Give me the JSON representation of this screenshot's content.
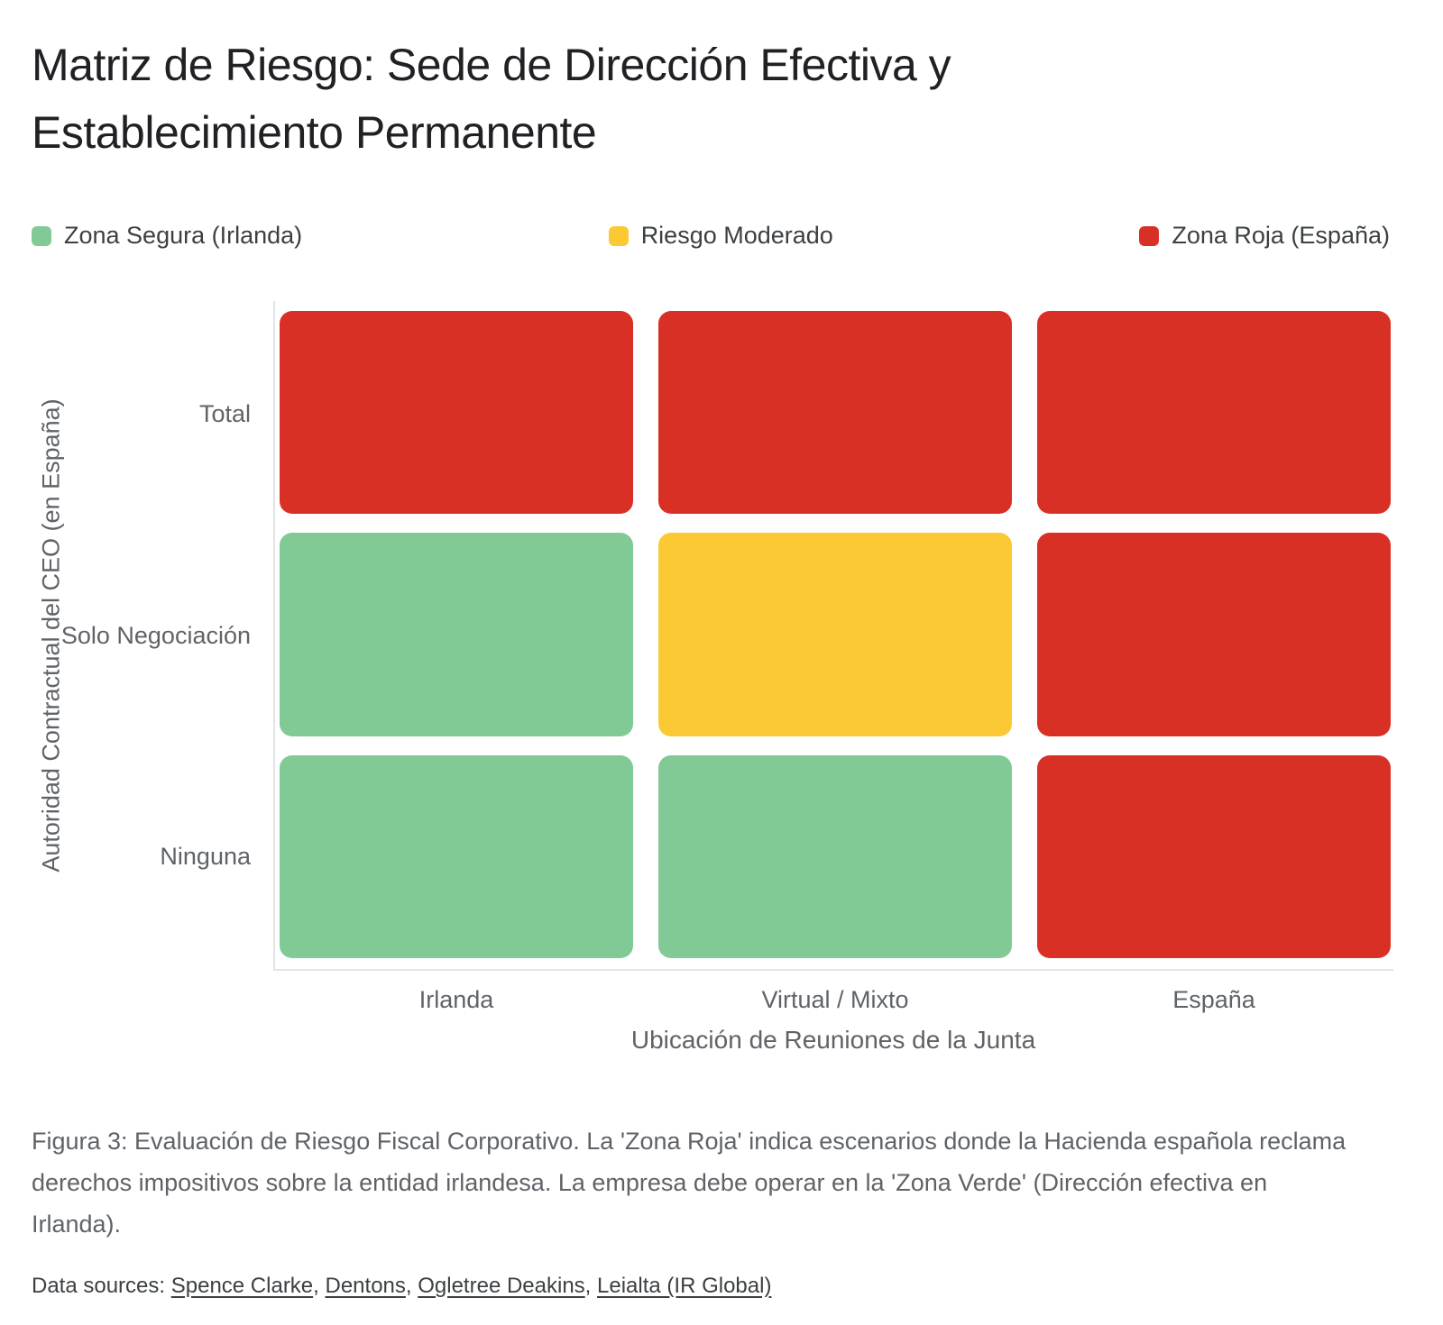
{
  "title": {
    "line1": "Matriz de Riesgo: Sede de Dirección Efectiva y",
    "line2": "Establecimiento Permanente"
  },
  "legend": [
    {
      "label": "Zona Segura (Irlanda)",
      "color": "#81C995"
    },
    {
      "label": "Riesgo Moderado",
      "color": "#FBC934"
    },
    {
      "label": "Zona Roja (España)",
      "color": "#D93025"
    }
  ],
  "chart_data": {
    "type": "heatmap",
    "title": "Matriz de Riesgo: Sede de Dirección Efectiva y Establecimiento Permanente",
    "xlabel": "Ubicación de Reuniones de la Junta",
    "ylabel": "Autoridad Contractual del CEO (en España)",
    "x_categories": [
      "Irlanda",
      "Virtual / Mixto",
      "España"
    ],
    "y_categories": [
      "Total",
      "Solo Negociación",
      "Ninguna"
    ],
    "cells": [
      [
        "red",
        "red",
        "red"
      ],
      [
        "green",
        "yellow",
        "red"
      ],
      [
        "green",
        "green",
        "red"
      ]
    ],
    "zone_colors": {
      "green": "#81C995",
      "yellow": "#FBC934",
      "red": "#D93025"
    },
    "zone_meanings": {
      "green": "Zona Segura (Irlanda)",
      "yellow": "Riesgo Moderado",
      "red": "Zona Roja (España)"
    },
    "legend_position": "top",
    "grid": false
  },
  "caption": "Figura 3: Evaluación de Riesgo Fiscal Corporativo. La 'Zona Roja' indica escenarios donde la Hacienda española reclama derechos impositivos sobre la entidad irlandesa. La empresa debe operar en la 'Zona Verde' (Dirección efectiva en Irlanda).",
  "sources": {
    "prefix": "Data sources: ",
    "separator": ", ",
    "links": [
      "Spence Clarke",
      "Dentons",
      "Ogletree Deakins",
      "Leialta (IR Global)"
    ]
  }
}
